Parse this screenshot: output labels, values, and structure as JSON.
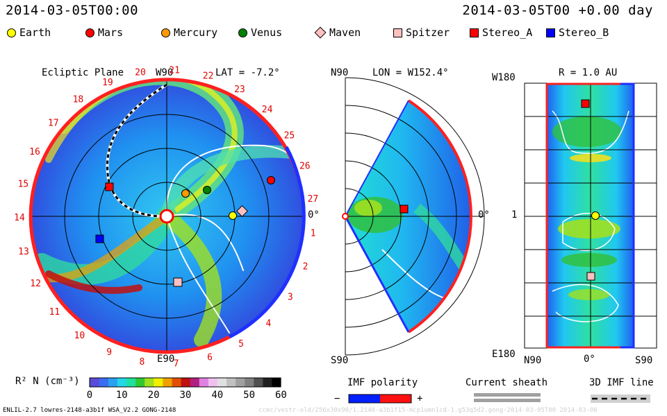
{
  "header": {
    "timestamp": "2014-03-05T00:00",
    "right_label": "2014-03-05T00 +0.00 day"
  },
  "legend": [
    {
      "name": "Earth",
      "shape": "circle",
      "color": "#ffff00"
    },
    {
      "name": "Mars",
      "shape": "circle",
      "color": "#ff0000"
    },
    {
      "name": "Mercury",
      "shape": "circle",
      "color": "#ff9900"
    },
    {
      "name": "Venus",
      "shape": "circle",
      "color": "#008000"
    },
    {
      "name": "Maven",
      "shape": "diamond",
      "color": "#ffc0c0"
    },
    {
      "name": "Spitzer",
      "shape": "square",
      "color": "#ffc0c0"
    },
    {
      "name": "Stereo_A",
      "shape": "square",
      "color": "#ff0000"
    },
    {
      "name": "Stereo_B",
      "shape": "square",
      "color": "#0000ff"
    }
  ],
  "ecliptic": {
    "title": "Ecliptic Plane",
    "lat": "LAT = -7.2°",
    "top_label": "W90",
    "bottom_label": "E90",
    "right_label": "0°",
    "clock_labels": [
      "1",
      "2",
      "3",
      "4",
      "5",
      "6",
      "7",
      "8",
      "9",
      "10",
      "11",
      "12",
      "13",
      "14",
      "15",
      "16",
      "17",
      "18",
      "19",
      "20",
      "21",
      "22",
      "23",
      "24",
      "25",
      "26",
      "27"
    ]
  },
  "meridional": {
    "lon": "LON = W152.4°",
    "top_label": "N90",
    "bottom_label": "S90",
    "right_label": "0°"
  },
  "radial": {
    "r": "R = 1.0 AU",
    "top_left": "W180",
    "mid_left": "1",
    "bottom_left": "E180",
    "axis_left": "N90",
    "axis_mid": "0°",
    "axis_right": "S90"
  },
  "colorbar": {
    "label": "R² N (cm⁻³)",
    "ticks": [
      "0",
      "10",
      "20",
      "30",
      "40",
      "50",
      "60"
    ],
    "colors": [
      "#5a4bd8",
      "#3b6df0",
      "#2aa0f0",
      "#20d8e8",
      "#20e0a0",
      "#30c830",
      "#a0e020",
      "#f0f000",
      "#f0a000",
      "#e05000",
      "#c01010",
      "#b02080",
      "#e080e0",
      "#f0c0f0",
      "#e0e0e0",
      "#c0c0c0",
      "#a0a0a0",
      "#808080",
      "#505050",
      "#202020",
      "#000000"
    ]
  },
  "imf": {
    "title": "IMF polarity",
    "minus": "−",
    "plus": "+"
  },
  "current_sheath": {
    "title": "Current sheath"
  },
  "imf3d": {
    "title": "3D IMF line"
  },
  "footer": {
    "left": "ENLIL-2.7 lowres-2148-a3b1f WSA_V2.2 GONG-2148",
    "right": "ccmc/vestr-old/256x30x90/1.2148-a3b1f15-mcp1umn1cd-1.g53q5d2.gong-2014-03-05T00    2014-03-06"
  }
}
